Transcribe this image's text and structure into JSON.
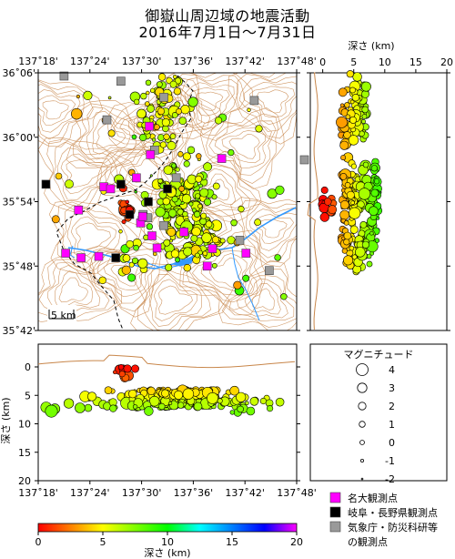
{
  "title_line1": "御嶽山周辺域の地震活動",
  "title_line2": "2016年7月1日〜7月31日",
  "map": {
    "lon_ticks": [
      "137˚18'",
      "137˚24'",
      "137˚30'",
      "137˚36'",
      "137˚42'",
      "137˚48'"
    ],
    "lat_ticks": [
      "36˚06'",
      "36˚00'",
      "35˚54'",
      "35˚48'",
      "35˚42'"
    ],
    "scale_label": "5 km",
    "lon_range": [
      "137˚18'",
      "137˚48'"
    ],
    "lat_range": [
      "35˚42'",
      "36˚06'"
    ]
  },
  "depth_section_right": {
    "axis_title": "深さ (km)",
    "ticks": [
      "0",
      "5",
      "10",
      "15",
      "20"
    ]
  },
  "depth_section_bottom": {
    "axis_title": "深さ (km)",
    "depth_ticks": [
      "0",
      "5",
      "10",
      "15",
      "20"
    ],
    "lon_ticks": [
      "137˚18'",
      "137˚24'",
      "137˚30'",
      "137˚36'",
      "137˚42'",
      "137˚48'"
    ]
  },
  "colorbar": {
    "title": "深さ (km)",
    "ticks": [
      "0",
      "5",
      "10",
      "15",
      "20"
    ],
    "colors": [
      "#ff0000",
      "#ff8000",
      "#ffff00",
      "#80ff00",
      "#00ff00",
      "#00ffff",
      "#0080ff",
      "#0000ff",
      "#ff00ff"
    ]
  },
  "magnitude_legend": {
    "title": "マグニチュード",
    "entries": [
      "4",
      "3",
      "2",
      "1",
      "0",
      "-1",
      "-2"
    ]
  },
  "station_legend": [
    {
      "label": "名大観測点",
      "color": "#ff00ff"
    },
    {
      "label": "岐阜・長野県観測点",
      "color": "#000000"
    },
    {
      "label": "気象庁・防災科研等",
      "color": "#999999"
    },
    {
      "label": "の観測点",
      "color": ""
    }
  ],
  "stations": {
    "nagoya": [
      [
        137.655,
        35.967
      ],
      [
        137.515,
        36.017
      ],
      [
        137.49,
        35.937
      ],
      [
        137.517,
        35.973
      ],
      [
        137.427,
        35.923
      ],
      [
        137.44,
        35.92
      ],
      [
        137.378,
        35.887
      ],
      [
        137.498,
        35.867
      ],
      [
        137.502,
        35.877
      ],
      [
        137.582,
        35.853
      ],
      [
        137.637,
        35.827
      ],
      [
        137.627,
        35.8
      ],
      [
        137.53,
        35.828
      ],
      [
        137.52,
        35.847
      ],
      [
        137.353,
        35.82
      ],
      [
        137.383,
        35.813
      ],
      [
        137.417,
        35.815
      ],
      [
        137.702,
        35.82
      ]
    ],
    "gifu_nagano": [
      [
        137.315,
        35.927
      ],
      [
        137.46,
        35.927
      ],
      [
        137.55,
        35.92
      ],
      [
        137.513,
        35.9
      ],
      [
        137.477,
        35.88
      ],
      [
        137.45,
        35.813
      ]
    ],
    "jma_nied": [
      [
        137.35,
        36.095
      ],
      [
        137.46,
        36.087
      ],
      [
        137.718,
        36.057
      ],
      [
        137.543,
        36.062
      ],
      [
        137.433,
        36.027
      ],
      [
        137.525,
        35.98
      ],
      [
        137.567,
        35.937
      ],
      [
        137.815,
        35.965
      ],
      [
        137.503,
        35.88
      ],
      [
        137.512,
        35.875
      ],
      [
        137.543,
        35.863
      ],
      [
        137.69,
        35.84
      ],
      [
        137.747,
        35.793
      ]
    ]
  },
  "quake_clusters_map": [
    {
      "lon": 137.537,
      "lat": 36.043,
      "spread": [
        0.022,
        0.03
      ],
      "n": 80,
      "depth": [
        4,
        7
      ]
    },
    {
      "lon": 137.578,
      "lat": 35.9,
      "spread": [
        0.035,
        0.03
      ],
      "n": 140,
      "depth": [
        5,
        7.5
      ]
    },
    {
      "lon": 137.602,
      "lat": 35.835,
      "spread": [
        0.03,
        0.018
      ],
      "n": 70,
      "depth": [
        4,
        7
      ]
    },
    {
      "lon": 137.465,
      "lat": 35.893,
      "spread": [
        0.01,
        0.01
      ],
      "n": 15,
      "depth": [
        0,
        2
      ]
    },
    {
      "lon": 137.48,
      "lat": 35.808,
      "spread": [
        0.02,
        0.015
      ],
      "n": 12,
      "depth": [
        5,
        9
      ]
    }
  ],
  "quake_clusters_depth_right": [
    {
      "lat": 36.043,
      "spread_lat": 0.03,
      "depth": [
        3,
        7
      ],
      "n": 90
    },
    {
      "lat": 35.9,
      "spread_lat": 0.03,
      "depth": [
        3,
        9
      ],
      "n": 140
    },
    {
      "lat": 35.835,
      "spread_lat": 0.018,
      "depth": [
        3,
        8
      ],
      "n": 70
    },
    {
      "lat": 35.893,
      "spread_lat": 0.01,
      "depth": [
        0,
        2
      ],
      "n": 15
    }
  ],
  "quake_clusters_depth_bottom": [
    {
      "lon": 137.465,
      "spread_lon": 0.01,
      "depth": [
        0,
        2
      ],
      "n": 15
    },
    {
      "lon": 137.545,
      "spread_lon": 0.05,
      "depth": [
        4,
        7
      ],
      "n": 130
    },
    {
      "lon": 137.6,
      "spread_lon": 0.04,
      "depth": [
        4,
        7
      ],
      "n": 120
    },
    {
      "lon": 137.69,
      "spread_lon": 0.04,
      "depth": [
        5,
        8
      ],
      "n": 30
    },
    {
      "lon": 137.4,
      "spread_lon": 0.06,
      "depth": [
        5,
        9
      ],
      "n": 15
    }
  ]
}
